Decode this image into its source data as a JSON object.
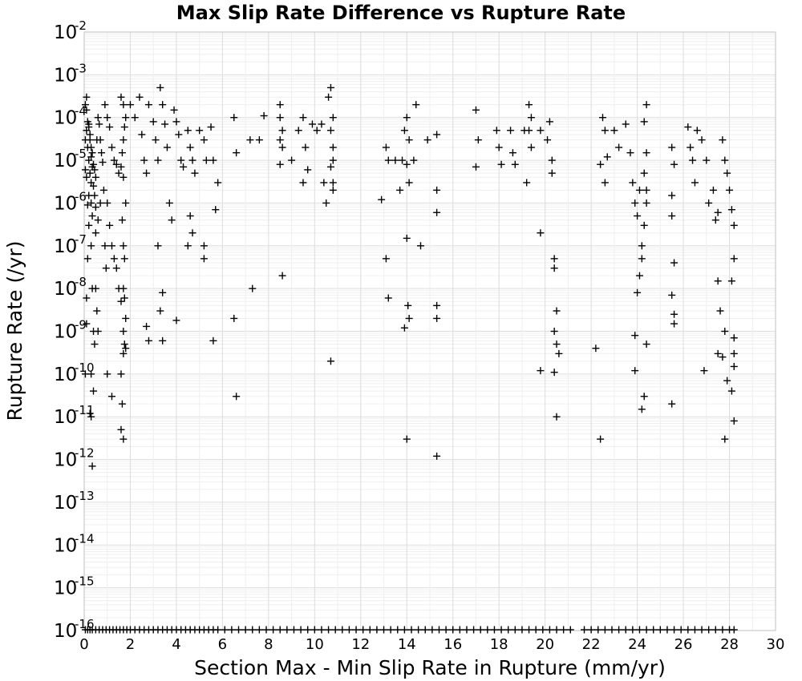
{
  "chart_data": {
    "type": "scatter",
    "title": "Max Slip Rate Difference vs Rupture Rate",
    "xlabel": "Section Max - Min Slip Rate in Rupture (mm/yr)",
    "ylabel": "Rupture Rate (/yr)",
    "xlim": [
      0,
      30
    ],
    "ylim": [
      1e-16,
      0.01
    ],
    "yscale": "log",
    "grid": true,
    "marker": "plus",
    "marker_color": "#000000",
    "x_ticks": [
      "0",
      "2",
      "4",
      "6",
      "8",
      "10",
      "12",
      "14",
      "16",
      "18",
      "20",
      "22",
      "24",
      "26",
      "28",
      "30"
    ],
    "y_ticks": [
      {
        "base": "10",
        "exp": "-2"
      },
      {
        "base": "10",
        "exp": "-3"
      },
      {
        "base": "10",
        "exp": "-4"
      },
      {
        "base": "10",
        "exp": "-5"
      },
      {
        "base": "10",
        "exp": "-6"
      },
      {
        "base": "10",
        "exp": "-7"
      },
      {
        "base": "10",
        "exp": "-8"
      },
      {
        "base": "10",
        "exp": "-9"
      },
      {
        "base": "10",
        "exp": "-10"
      },
      {
        "base": "10",
        "exp": "-11"
      },
      {
        "base": "10",
        "exp": "-12"
      },
      {
        "base": "10",
        "exp": "-13"
      },
      {
        "base": "10",
        "exp": "-14"
      },
      {
        "base": "10",
        "exp": "-15"
      },
      {
        "base": "10",
        "exp": "-16"
      }
    ],
    "points": [
      [
        0.05,
        0.0002
      ],
      [
        0.1,
        0.00015
      ],
      [
        0.1,
        5e-05
      ],
      [
        0.15,
        2e-05
      ],
      [
        0.2,
        1e-05
      ],
      [
        0.25,
        5e-06
      ],
      [
        0.3,
        1e-06
      ],
      [
        0.3,
        1e-07
      ],
      [
        0.35,
        1e-08
      ],
      [
        0.4,
        1e-09
      ],
      [
        0.45,
        5e-10
      ],
      [
        0.3,
        1e-10
      ],
      [
        0.25,
        1.2e-11
      ],
      [
        0.3,
        1e-11
      ],
      [
        0.35,
        7e-13
      ],
      [
        0.4,
        4e-11
      ],
      [
        0.2,
        3e-07
      ],
      [
        0.15,
        5e-08
      ],
      [
        0.1,
        6e-09
      ],
      [
        0.1,
        1.5e-09
      ],
      [
        0.05,
        1e-10
      ],
      [
        0.1,
        0.0003
      ],
      [
        0.15,
        8e-05
      ],
      [
        0.2,
        6e-05
      ],
      [
        0.25,
        3e-05
      ],
      [
        0.3,
        2e-05
      ],
      [
        0.35,
        1.5e-05
      ],
      [
        0.4,
        8e-06
      ],
      [
        0.45,
        6e-06
      ],
      [
        0.5,
        4e-06
      ],
      [
        0.55,
        3e-05
      ],
      [
        0.6,
        0.0001
      ],
      [
        0.65,
        7e-05
      ],
      [
        0.7,
        3e-05
      ],
      [
        0.75,
        1.5e-05
      ],
      [
        0.8,
        9e-06
      ],
      [
        0.85,
        2e-06
      ],
      [
        0.9,
        1e-07
      ],
      [
        0.95,
        3e-08
      ],
      [
        0.5,
        1e-08
      ],
      [
        0.55,
        3e-09
      ],
      [
        0.6,
        1e-09
      ],
      [
        0.5,
        2e-07
      ],
      [
        0.6,
        4e-07
      ],
      [
        0.7,
        1e-06
      ],
      [
        0.2,
        7e-05
      ],
      [
        0.25,
        4e-05
      ],
      [
        0.3,
        1.2e-05
      ],
      [
        0.35,
        7e-06
      ],
      [
        0.4,
        2.5e-06
      ],
      [
        0.45,
        1.5e-06
      ],
      [
        0.5,
        8e-07
      ],
      [
        0.35,
        5e-07
      ],
      [
        0.3,
        3e-06
      ],
      [
        0.2,
        1.5e-06
      ],
      [
        0.15,
        9e-07
      ],
      [
        0.1,
        4e-06
      ],
      [
        0.05,
        6e-06
      ],
      [
        0.05,
        3e-05
      ],
      [
        0.9,
        0.0002
      ],
      [
        1.0,
        0.0001
      ],
      [
        1.1,
        6e-05
      ],
      [
        1.2,
        2e-05
      ],
      [
        1.3,
        1e-05
      ],
      [
        1.4,
        8e-06
      ],
      [
        1.5,
        5e-06
      ],
      [
        1.0,
        1e-06
      ],
      [
        1.1,
        3e-07
      ],
      [
        1.2,
        1e-07
      ],
      [
        1.3,
        5e-08
      ],
      [
        1.4,
        3e-08
      ],
      [
        1.5,
        1e-08
      ],
      [
        1.6,
        5e-09
      ],
      [
        1.7,
        1e-09
      ],
      [
        1.8,
        4e-10
      ],
      [
        1.6,
        1e-10
      ],
      [
        1.65,
        2e-11
      ],
      [
        1.7,
        3e-12
      ],
      [
        1.6,
        5e-12
      ],
      [
        1.2,
        3e-11
      ],
      [
        1.0,
        1e-10
      ],
      [
        1.6,
        0.0003
      ],
      [
        1.7,
        0.0002
      ],
      [
        1.8,
        0.0001
      ],
      [
        1.75,
        6e-05
      ],
      [
        1.7,
        3e-05
      ],
      [
        1.65,
        1.5e-05
      ],
      [
        1.6,
        7e-06
      ],
      [
        1.7,
        4e-06
      ],
      [
        1.8,
        1e-06
      ],
      [
        1.65,
        4e-07
      ],
      [
        1.7,
        1e-07
      ],
      [
        1.75,
        5e-08
      ],
      [
        1.7,
        1e-08
      ],
      [
        1.75,
        6e-09
      ],
      [
        1.8,
        2e-09
      ],
      [
        1.7,
        3e-10
      ],
      [
        1.75,
        5e-10
      ],
      [
        2.0,
        0.0002
      ],
      [
        2.2,
        0.0001
      ],
      [
        2.4,
        0.0003
      ],
      [
        2.5,
        4e-05
      ],
      [
        2.6,
        1e-05
      ],
      [
        2.7,
        5e-06
      ],
      [
        2.8,
        0.0002
      ],
      [
        3.0,
        8e-05
      ],
      [
        3.1,
        3e-05
      ],
      [
        3.2,
        1e-05
      ],
      [
        3.3,
        0.0005
      ],
      [
        3.4,
        0.0002
      ],
      [
        3.5,
        7e-05
      ],
      [
        3.6,
        2e-05
      ],
      [
        3.7,
        1e-06
      ],
      [
        3.8,
        4e-07
      ],
      [
        3.4,
        8e-09
      ],
      [
        3.3,
        3e-09
      ],
      [
        3.2,
        1e-07
      ],
      [
        3.4,
        6e-10
      ],
      [
        2.7,
        1.3e-09
      ],
      [
        2.8,
        6e-10
      ],
      [
        3.9,
        0.00015
      ],
      [
        4.0,
        8e-05
      ],
      [
        4.1,
        4e-05
      ],
      [
        4.2,
        1e-05
      ],
      [
        4.3,
        7e-06
      ],
      [
        4.5,
        5e-05
      ],
      [
        4.6,
        2e-05
      ],
      [
        4.7,
        1e-05
      ],
      [
        4.8,
        5e-06
      ],
      [
        4.6,
        5e-07
      ],
      [
        4.7,
        2e-07
      ],
      [
        4.0,
        1.8e-09
      ],
      [
        4.5,
        1e-07
      ],
      [
        5.0,
        5e-05
      ],
      [
        5.2,
        3e-05
      ],
      [
        5.3,
        1e-05
      ],
      [
        5.2,
        5e-08
      ],
      [
        5.2,
        1e-07
      ],
      [
        5.5,
        6e-05
      ],
      [
        5.6,
        1e-05
      ],
      [
        5.7,
        7e-07
      ],
      [
        5.8,
        3e-06
      ],
      [
        5.6,
        6e-10
      ],
      [
        6.5,
        0.0001
      ],
      [
        6.6,
        1.5e-05
      ],
      [
        6.5,
        2e-09
      ],
      [
        6.6,
        3e-11
      ],
      [
        7.2,
        3e-05
      ],
      [
        7.3,
        1e-08
      ],
      [
        7.6,
        3e-05
      ],
      [
        7.8,
        0.00011
      ],
      [
        8.5,
        0.0002
      ],
      [
        8.5,
        0.0001
      ],
      [
        8.6,
        5e-05
      ],
      [
        8.5,
        3e-05
      ],
      [
        8.6,
        2e-05
      ],
      [
        8.5,
        8e-06
      ],
      [
        8.6,
        2e-08
      ],
      [
        9.0,
        1e-05
      ],
      [
        9.3,
        5e-05
      ],
      [
        9.5,
        0.0001
      ],
      [
        9.6,
        2e-05
      ],
      [
        9.7,
        6e-06
      ],
      [
        9.5,
        3e-06
      ],
      [
        9.9,
        7e-05
      ],
      [
        10.1,
        5e-05
      ],
      [
        10.3,
        7e-05
      ],
      [
        10.5,
        1e-06
      ],
      [
        10.4,
        3e-06
      ],
      [
        10.7,
        0.0005
      ],
      [
        10.6,
        0.0003
      ],
      [
        10.8,
        0.0001
      ],
      [
        10.7,
        5e-05
      ],
      [
        10.8,
        2e-05
      ],
      [
        10.8,
        1e-05
      ],
      [
        10.7,
        7e-06
      ],
      [
        10.8,
        2e-06
      ],
      [
        10.8,
        3e-06
      ],
      [
        10.7,
        2e-10
      ],
      [
        12.9,
        1.2e-06
      ],
      [
        13.1,
        2e-05
      ],
      [
        13.2,
        1e-05
      ],
      [
        13.1,
        5e-08
      ],
      [
        13.2,
        6e-09
      ],
      [
        13.5,
        1e-05
      ],
      [
        13.7,
        2e-06
      ],
      [
        13.8,
        1e-05
      ],
      [
        13.9,
        5e-05
      ],
      [
        14.0,
        0.0001
      ],
      [
        14.1,
        3e-05
      ],
      [
        14.0,
        8e-06
      ],
      [
        14.1,
        3e-06
      ],
      [
        14.0,
        1.5e-07
      ],
      [
        14.05,
        4e-09
      ],
      [
        14.1,
        2e-09
      ],
      [
        13.9,
        1.2e-09
      ],
      [
        14.0,
        3e-12
      ],
      [
        14.3,
        1e-05
      ],
      [
        14.4,
        0.0002
      ],
      [
        14.6,
        1e-07
      ],
      [
        14.9,
        3e-05
      ],
      [
        15.3,
        4e-05
      ],
      [
        15.3,
        2e-06
      ],
      [
        15.3,
        6e-07
      ],
      [
        15.3,
        4e-09
      ],
      [
        15.3,
        2e-09
      ],
      [
        15.3,
        1.2e-12
      ],
      [
        17.0,
        0.00015
      ],
      [
        17.1,
        3e-05
      ],
      [
        17.0,
        7e-06
      ],
      [
        17.9,
        5e-05
      ],
      [
        18.0,
        2e-05
      ],
      [
        18.1,
        8e-06
      ],
      [
        18.5,
        5e-05
      ],
      [
        18.6,
        1.5e-05
      ],
      [
        18.7,
        8e-06
      ],
      [
        19.1,
        5e-05
      ],
      [
        19.3,
        0.0002
      ],
      [
        19.4,
        0.0001
      ],
      [
        19.3,
        5e-05
      ],
      [
        19.4,
        2e-05
      ],
      [
        19.2,
        3e-06
      ],
      [
        19.8,
        5e-05
      ],
      [
        19.8,
        2e-07
      ],
      [
        19.8,
        1.2e-10
      ],
      [
        20.2,
        8e-05
      ],
      [
        20.1,
        3e-05
      ],
      [
        20.3,
        1e-05
      ],
      [
        20.3,
        5e-06
      ],
      [
        20.4,
        5e-08
      ],
      [
        20.4,
        3e-08
      ],
      [
        20.4,
        1e-09
      ],
      [
        20.5,
        3e-09
      ],
      [
        20.5,
        5e-10
      ],
      [
        20.4,
        1.1e-10
      ],
      [
        20.5,
        1e-11
      ],
      [
        20.6,
        3e-10
      ],
      [
        22.4,
        8e-06
      ],
      [
        22.5,
        0.0001
      ],
      [
        22.6,
        5e-05
      ],
      [
        22.6,
        3e-06
      ],
      [
        22.7,
        1.2e-05
      ],
      [
        23.0,
        5e-05
      ],
      [
        23.2,
        2e-05
      ],
      [
        23.5,
        7e-05
      ],
      [
        23.7,
        1.5e-05
      ],
      [
        23.8,
        3e-06
      ],
      [
        23.9,
        1e-06
      ],
      [
        24.0,
        5e-07
      ],
      [
        24.1,
        2e-06
      ],
      [
        24.2,
        1e-07
      ],
      [
        24.2,
        5e-08
      ],
      [
        24.0,
        8e-09
      ],
      [
        24.1,
        2e-08
      ],
      [
        23.9,
        8e-10
      ],
      [
        23.9,
        1.2e-10
      ],
      [
        24.2,
        1.5e-11
      ],
      [
        24.3,
        3e-11
      ],
      [
        24.4,
        0.0002
      ],
      [
        24.3,
        8e-05
      ],
      [
        24.4,
        1.5e-05
      ],
      [
        24.3,
        5e-06
      ],
      [
        24.4,
        2e-06
      ],
      [
        24.4,
        1e-06
      ],
      [
        24.3,
        3e-07
      ],
      [
        24.4,
        5e-10
      ],
      [
        22.2,
        4e-10
      ],
      [
        22.4,
        3e-12
      ],
      [
        25.5,
        2e-05
      ],
      [
        25.6,
        8e-06
      ],
      [
        25.5,
        1.5e-06
      ],
      [
        25.5,
        5e-07
      ],
      [
        25.6,
        4e-08
      ],
      [
        25.5,
        7e-09
      ],
      [
        25.6,
        2.5e-09
      ],
      [
        25.6,
        1.5e-09
      ],
      [
        25.5,
        2e-11
      ],
      [
        26.2,
        6e-05
      ],
      [
        26.3,
        2e-05
      ],
      [
        26.4,
        1e-05
      ],
      [
        26.5,
        3e-06
      ],
      [
        26.6,
        5e-05
      ],
      [
        26.8,
        3e-05
      ],
      [
        27.0,
        1e-05
      ],
      [
        27.1,
        1e-06
      ],
      [
        26.9,
        1.2e-10
      ],
      [
        27.3,
        2e-06
      ],
      [
        27.4,
        4e-07
      ],
      [
        27.5,
        6e-07
      ],
      [
        27.5,
        1.5e-08
      ],
      [
        27.6,
        3e-09
      ],
      [
        27.5,
        3e-10
      ],
      [
        27.7,
        3e-05
      ],
      [
        27.8,
        1e-05
      ],
      [
        27.9,
        5e-06
      ],
      [
        28.0,
        2e-06
      ],
      [
        28.1,
        7e-07
      ],
      [
        28.2,
        3e-07
      ],
      [
        28.2,
        5e-08
      ],
      [
        28.1,
        1.5e-08
      ],
      [
        28.2,
        7e-10
      ],
      [
        28.2,
        3e-10
      ],
      [
        28.2,
        1.5e-10
      ],
      [
        28.1,
        4e-11
      ],
      [
        27.8,
        3e-12
      ],
      [
        27.9,
        7e-11
      ],
      [
        28.2,
        8e-12
      ],
      [
        27.7,
        2.5e-10
      ],
      [
        27.8,
        1e-09
      ]
    ],
    "floor_x": [
      0.05,
      0.15,
      0.25,
      0.35,
      0.5,
      0.65,
      0.8,
      0.95,
      1.1,
      1.25,
      1.4,
      1.55,
      1.7,
      1.85,
      2.0,
      2.2,
      2.4,
      2.6,
      2.8,
      3.0,
      3.2,
      3.4,
      3.6,
      3.8,
      4.0,
      4.2,
      4.4,
      4.6,
      4.8,
      5.0,
      5.2,
      5.4,
      5.6,
      5.8,
      6.1,
      6.4,
      6.7,
      7.0,
      7.3,
      7.6,
      7.9,
      8.2,
      8.5,
      8.8,
      9.1,
      9.4,
      9.7,
      10.0,
      10.3,
      10.6,
      10.9,
      11.2,
      11.5,
      11.8,
      12.1,
      12.4,
      12.7,
      13.0,
      13.3,
      13.6,
      13.9,
      14.2,
      14.5,
      14.8,
      15.1,
      15.4,
      15.7,
      16.0,
      16.3,
      16.6,
      16.9,
      17.2,
      17.5,
      17.8,
      18.1,
      18.4,
      18.7,
      19.0,
      19.3,
      19.6,
      19.9,
      20.2,
      20.5,
      20.8,
      21.1,
      21.7,
      22.0,
      22.3,
      22.6,
      22.9,
      23.2,
      23.5,
      23.8,
      24.1,
      24.4,
      24.7,
      25.0,
      25.3,
      25.6,
      25.9,
      26.2,
      26.5,
      26.8,
      27.1,
      27.4,
      27.7,
      28.0,
      28.2
    ]
  }
}
